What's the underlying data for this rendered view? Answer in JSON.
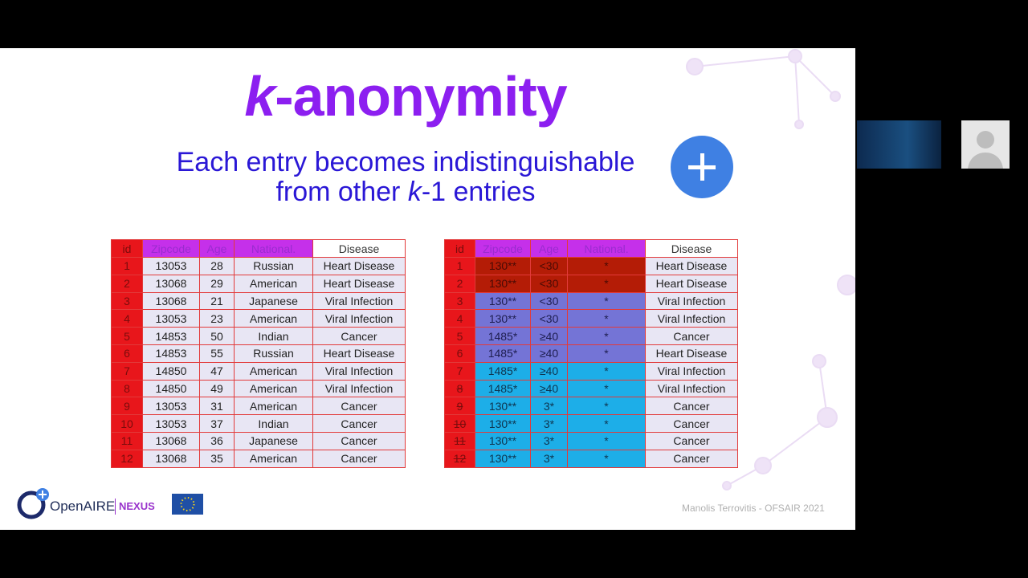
{
  "slide": {
    "title": {
      "italic": "k",
      "rest": "-anonymity"
    },
    "subtitle": {
      "line1": "Each entry becomes indistinguishable",
      "line2_start": "from other ",
      "line2_italic": "k",
      "line2_end": "-1 entries"
    },
    "tables": [
      {
        "header": [
          "id",
          "Zipcode",
          "Age",
          "National.",
          "Disease"
        ],
        "rows": [
          [
            "1",
            "13053",
            "28",
            "Russian",
            "Heart Disease"
          ],
          [
            "2",
            "13068",
            "29",
            "American",
            "Heart Disease"
          ],
          [
            "3",
            "13068",
            "21",
            "Japanese",
            "Viral Infection"
          ],
          [
            "4",
            "13053",
            "23",
            "American",
            "Viral Infection"
          ],
          [
            "5",
            "14853",
            "50",
            "Indian",
            "Cancer"
          ],
          [
            "6",
            "14853",
            "55",
            "Russian",
            "Heart Disease"
          ],
          [
            "7",
            "14850",
            "47",
            "American",
            "Viral Infection"
          ],
          [
            "8",
            "14850",
            "49",
            "American",
            "Viral Infection"
          ],
          [
            "9",
            "13053",
            "31",
            "American",
            "Cancer"
          ],
          [
            "10",
            "13053",
            "37",
            "Indian",
            "Cancer"
          ],
          [
            "11",
            "13068",
            "36",
            "Japanese",
            "Cancer"
          ],
          [
            "12",
            "13068",
            "35",
            "American",
            "Cancer"
          ]
        ]
      },
      {
        "header": [
          "id",
          "Zipcode",
          "Age",
          "National.",
          "Disease"
        ],
        "rows": [
          [
            "1",
            "130**",
            "<30",
            "*",
            "Heart Disease"
          ],
          [
            "2",
            "130**",
            "<30",
            "*",
            "Heart Disease"
          ],
          [
            "3",
            "130**",
            "<30",
            "*",
            "Viral Infection"
          ],
          [
            "4",
            "130**",
            "<30",
            "*",
            "Viral Infection"
          ],
          [
            "5",
            "1485*",
            "≥40",
            "*",
            "Cancer"
          ],
          [
            "6",
            "1485*",
            "≥40",
            "*",
            "Heart Disease"
          ],
          [
            "7",
            "1485*",
            "≥40",
            "*",
            "Viral Infection"
          ],
          [
            "8",
            "1485*",
            "≥40",
            "*",
            "Viral Infection"
          ],
          [
            "9",
            "130**",
            "3*",
            "*",
            "Cancer"
          ],
          [
            "10",
            "130**",
            "3*",
            "*",
            "Cancer"
          ],
          [
            "11",
            "130**",
            "3*",
            "*",
            "Cancer"
          ],
          [
            "12",
            "130**",
            "3*",
            "*",
            "Cancer"
          ]
        ]
      }
    ],
    "footer": {
      "logo": "OpenAIRE",
      "logo_suffix": "NEXUS",
      "credit": "Manolis Terrovitis - OFSAIR 2021"
    }
  }
}
